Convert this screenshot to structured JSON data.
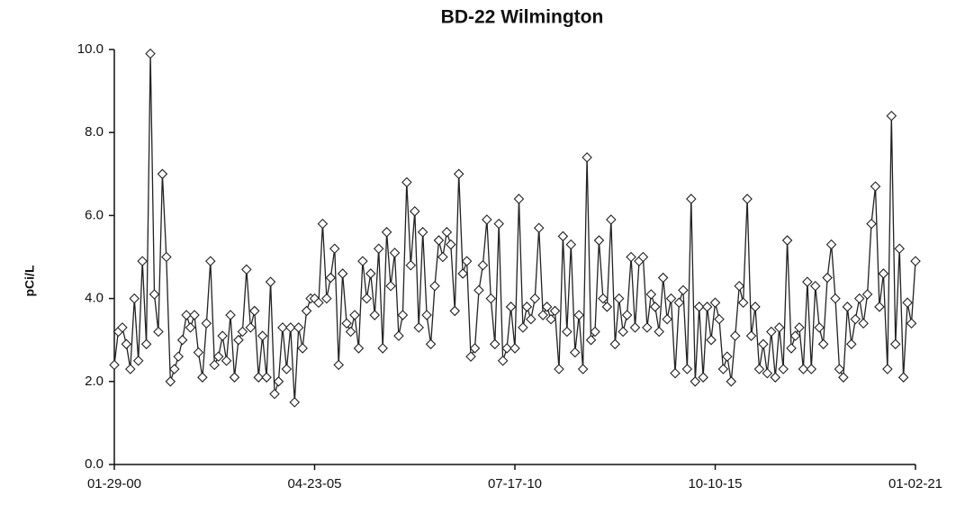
{
  "chart_data": {
    "type": "line",
    "title": "BD-22 Wilmington",
    "ylabel": "pCi/L",
    "ylim": [
      0,
      10
    ],
    "yticks": [
      {
        "value": 0,
        "label": "0.0"
      },
      {
        "value": 2,
        "label": "2.0"
      },
      {
        "value": 4,
        "label": "4.0"
      },
      {
        "value": 6,
        "label": "6.0"
      },
      {
        "value": 8,
        "label": "8.0"
      },
      {
        "value": 10,
        "label": "10.0"
      }
    ],
    "categories": [
      "01-29-00",
      null,
      null,
      null,
      null,
      null,
      null,
      null,
      null,
      null,
      null,
      null,
      null,
      null,
      null,
      null,
      null,
      null,
      null,
      null,
      null,
      null,
      null,
      null,
      null,
      null,
      null,
      null,
      null,
      null,
      null,
      null,
      null,
      null,
      null,
      null,
      null,
      null,
      null,
      null,
      null,
      null,
      null,
      null,
      null,
      null,
      null,
      null,
      null,
      null,
      "04-23-05",
      null,
      null,
      null,
      null,
      null,
      null,
      null,
      null,
      null,
      null,
      null,
      null,
      null,
      null,
      null,
      null,
      null,
      null,
      null,
      null,
      null,
      null,
      null,
      null,
      null,
      null,
      null,
      null,
      null,
      null,
      null,
      null,
      null,
      null,
      null,
      null,
      null,
      null,
      null,
      null,
      null,
      null,
      null,
      null,
      null,
      null,
      null,
      null,
      null,
      "07-17-10",
      null,
      null,
      null,
      null,
      null,
      null,
      null,
      null,
      null,
      null,
      null,
      null,
      null,
      null,
      null,
      null,
      null,
      null,
      null,
      null,
      null,
      null,
      null,
      null,
      null,
      null,
      null,
      null,
      null,
      null,
      null,
      null,
      null,
      null,
      null,
      null,
      null,
      null,
      null,
      null,
      null,
      null,
      null,
      null,
      null,
      null,
      null,
      null,
      null,
      "10-10-15",
      null,
      null,
      null,
      null,
      null,
      null,
      null,
      null,
      null,
      null,
      null,
      null,
      null,
      null,
      null,
      null,
      null,
      null,
      null,
      null,
      null,
      null,
      null,
      null,
      null,
      null,
      null,
      null,
      null,
      null,
      null,
      null,
      null,
      null,
      null,
      null,
      null,
      null,
      null,
      null,
      null,
      null,
      null,
      null,
      null,
      null,
      null,
      null,
      null,
      "01-02-21"
    ],
    "series": [
      {
        "color": "#222222",
        "values": [
          2.4,
          3.2,
          3.3,
          2.9,
          2.3,
          4.0,
          2.5,
          4.9,
          2.9,
          9.9,
          4.1,
          3.2,
          7.0,
          5.0,
          2.0,
          2.3,
          2.6,
          3.0,
          3.6,
          3.3,
          3.6,
          2.7,
          2.1,
          3.4,
          4.9,
          2.4,
          2.6,
          3.1,
          2.5,
          3.6,
          2.1,
          3.0,
          3.2,
          4.7,
          3.3,
          3.7,
          2.1,
          3.1,
          2.1,
          4.4,
          1.7,
          2.0,
          3.3,
          2.3,
          3.3,
          1.5,
          3.3,
          2.8,
          3.7,
          4.0,
          4.0,
          3.9,
          5.8,
          4.0,
          4.5,
          5.2,
          2.4,
          4.6,
          3.4,
          3.2,
          3.6,
          2.8,
          4.9,
          4.0,
          4.6,
          3.6,
          5.2,
          2.8,
          5.6,
          4.3,
          5.1,
          3.1,
          3.6,
          6.8,
          4.8,
          6.1,
          3.3,
          5.6,
          3.6,
          2.9,
          4.3,
          5.4,
          5.0,
          5.6,
          5.3,
          3.7,
          7.0,
          4.6,
          4.9,
          2.6,
          2.8,
          4.2,
          4.8,
          5.9,
          4.0,
          2.9,
          5.8,
          2.5,
          2.8,
          3.8,
          2.8,
          6.4,
          3.3,
          3.8,
          3.5,
          4.0,
          5.7,
          3.6,
          3.8,
          3.5,
          3.7,
          2.3,
          5.5,
          3.2,
          5.3,
          2.7,
          3.6,
          2.3,
          7.4,
          3.0,
          3.2,
          5.4,
          4.0,
          3.8,
          5.9,
          2.9,
          4.0,
          3.2,
          3.6,
          5.0,
          3.3,
          4.9,
          5.0,
          3.3,
          4.1,
          3.8,
          3.2,
          4.5,
          3.5,
          4.0,
          2.2,
          3.9,
          4.2,
          2.3,
          6.4,
          2.0,
          3.8,
          2.1,
          3.8,
          3.0,
          3.9,
          3.5,
          2.3,
          2.6,
          2.0,
          3.1,
          4.3,
          3.9,
          6.4,
          3.1,
          3.8,
          2.3,
          2.9,
          2.2,
          3.2,
          2.1,
          3.3,
          2.3,
          5.4,
          2.8,
          3.1,
          3.3,
          2.3,
          4.4,
          2.3,
          4.3,
          3.3,
          2.9,
          4.5,
          5.3,
          4.0,
          2.3,
          2.1,
          3.8,
          2.9,
          3.5,
          4.0,
          3.4,
          4.1,
          5.8,
          6.7,
          3.8,
          4.6,
          2.3,
          8.4,
          2.9,
          5.2,
          2.1,
          3.9,
          3.4,
          4.9
        ]
      }
    ]
  }
}
